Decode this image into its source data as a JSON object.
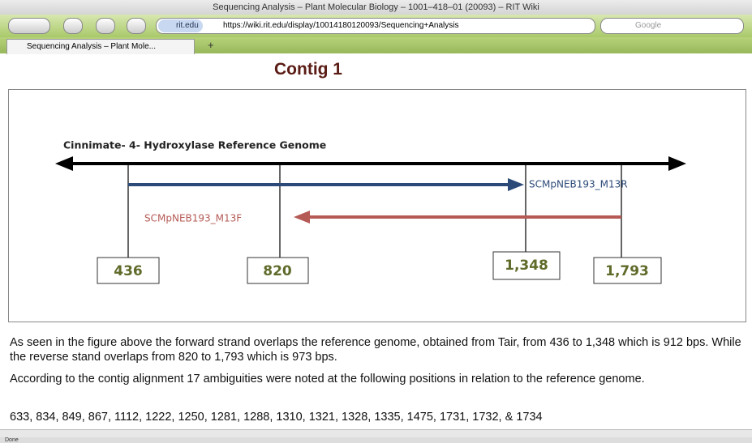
{
  "browser": {
    "window_title": "Sequencing Analysis – Plant Molecular Biology – 1001–418–01 (20093) – RIT Wiki",
    "site_badge": "rit.edu",
    "url": "https://wiki.rit.edu/display/10014180120093/Sequencing+Analysis",
    "search_placeholder": "Google",
    "tab_title": "Sequencing Analysis – Plant Mole...",
    "new_tab": "+",
    "status": "Done"
  },
  "content": {
    "heading": "Contig 1",
    "figure": {
      "reference_label": "Cinnimate- 4- Hydroxylase Reference Genome",
      "forward_label": "SCMpNEB193_M13R",
      "reverse_label": "SCMpNEB193_M13F",
      "positions": [
        "436",
        "820",
        "1,348",
        "1,793"
      ]
    },
    "paragraphs": [
      "As seen in the figure above the forward strand overlaps the reference genome, obtained from Tair, from 436 to 1,348 which is 912 bps. While the reverse stand overlaps from 820 to 1,793 which is 973 bps.",
      "According to the contig alignment 17 ambiguities were noted at the following positions in relation to the reference genome.",
      "633, 834, 849, 867, 1112, 1222, 1250, 1281, 1288, 1310, 1321, 1328, 1335, 1475, 1731, 1732, & 1734"
    ]
  }
}
